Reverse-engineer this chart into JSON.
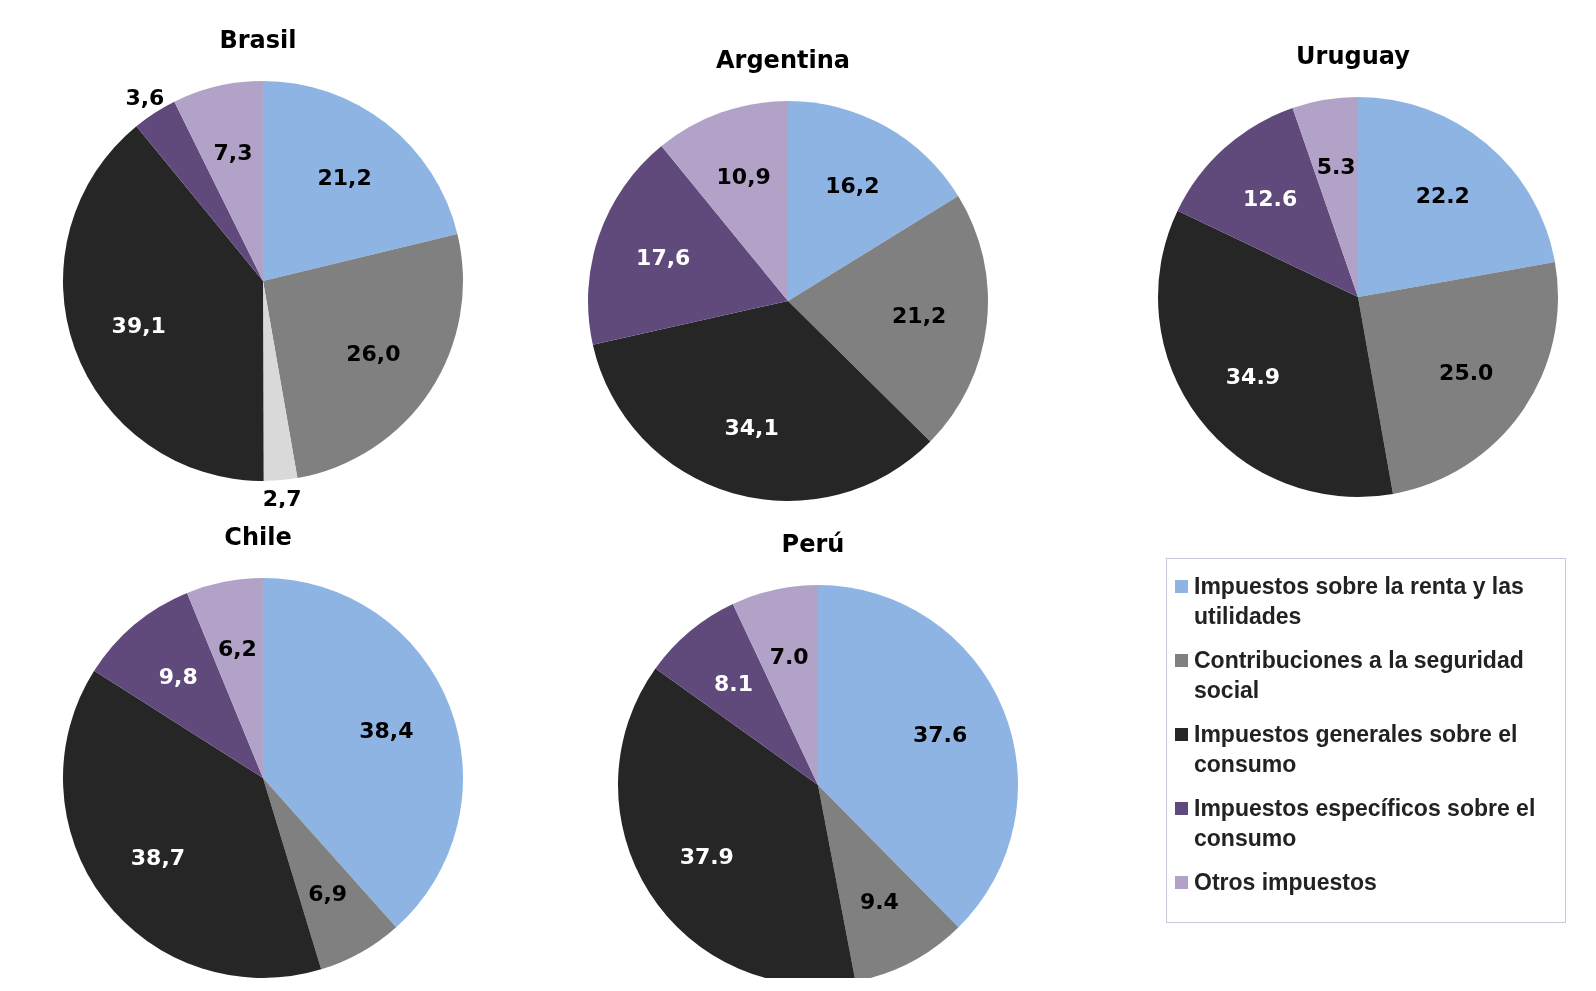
{
  "chart_data": [
    {
      "type": "pie",
      "title": "Brasil",
      "categories": [
        null,
        null,
        null,
        null,
        null,
        null
      ],
      "values": [
        21.2,
        26.0,
        2.7,
        39.1,
        3.6,
        7.3
      ],
      "value_labels": [
        "21,2",
        "26,0",
        "2,7",
        "39,1",
        "3,6",
        "7,3"
      ],
      "colors": [
        "#8eb4e3",
        "#808080",
        "#d9d9d9",
        "#262626",
        "#604a7b",
        "#b3a2c7"
      ]
    },
    {
      "type": "pie",
      "title": "Argentina",
      "categories": [
        null,
        null,
        null,
        null,
        null
      ],
      "values": [
        16.2,
        21.2,
        34.1,
        17.6,
        10.9
      ],
      "value_labels": [
        "16,2",
        "21,2",
        "34,1",
        "17,6",
        "10,9"
      ],
      "colors": [
        "#8eb4e3",
        "#808080",
        "#262626",
        "#604a7b",
        "#b3a2c7"
      ]
    },
    {
      "type": "pie",
      "title": "Uruguay",
      "categories": [
        null,
        null,
        null,
        null,
        null
      ],
      "values": [
        22.2,
        25.0,
        34.9,
        12.6,
        5.3
      ],
      "value_labels": [
        "22.2",
        "25.0",
        "34.9",
        "12.6",
        "5.3"
      ],
      "colors": [
        "#8eb4e3",
        "#808080",
        "#262626",
        "#604a7b",
        "#b3a2c7"
      ]
    },
    {
      "type": "pie",
      "title": "Chile",
      "categories": [
        null,
        null,
        null,
        null,
        null
      ],
      "values": [
        38.4,
        6.9,
        38.7,
        9.8,
        6.2
      ],
      "value_labels": [
        "38,4",
        "6,9",
        "38,7",
        "9,8",
        "6,2"
      ],
      "colors": [
        "#8eb4e3",
        "#808080",
        "#262626",
        "#604a7b",
        "#b3a2c7"
      ]
    },
    {
      "type": "pie",
      "title": "Perú",
      "categories": [
        "Impuestos sobre la renta y las utilidades",
        "Contribuciones a la seguridad social",
        "Impuestos generales sobre el consumo",
        "Impuestos específicos sobre el consumo",
        "Otros impuestos"
      ],
      "values": [
        37.6,
        9.4,
        37.9,
        8.1,
        7.0
      ],
      "value_labels": [
        "37.6",
        "9.4",
        "37.9",
        "8.1",
        "7.0"
      ],
      "colors": [
        "#8eb4e3",
        "#808080",
        "#262626",
        "#604a7b",
        "#b3a2c7"
      ],
      "legend": "right"
    }
  ]
}
